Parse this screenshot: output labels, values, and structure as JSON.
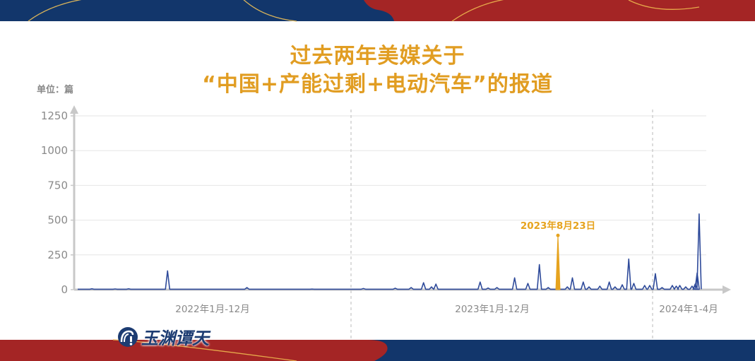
{
  "colors": {
    "title": "#e19d22",
    "line": "#2e4a9a",
    "highlight": "#e6a31e",
    "banner_blue": "#12366b",
    "banner_red": "#a42525",
    "axis": "#c8c8c8",
    "grid": "#e6e6e6"
  },
  "title_line1": "过去两年美媒关于",
  "title_line2": "“中国+产能过剩+电动汽车”的报道",
  "unit_label": "单位：篇",
  "logo": {
    "text": "玉渊谭天",
    "icon": "wave-exclamation-logo-icon"
  },
  "chart_data": {
    "type": "line",
    "ylim": [
      0,
      1250
    ],
    "yticks": [
      0,
      250,
      500,
      750,
      1000,
      1250
    ],
    "grid": true,
    "period_labels": [
      "2022年1月-12月",
      "2023年1月-12月",
      "2024年1-4月"
    ],
    "highlight": {
      "date": "2023-08-23",
      "value": 390,
      "label": "2023年8月23日"
    },
    "baseline_value": 3,
    "series": [
      {
        "points": [
          [
            "2022-01-20",
            6
          ],
          [
            "2022-02-20",
            5
          ],
          [
            "2022-03-10",
            6
          ],
          [
            "2022-05-01",
            135
          ],
          [
            "2022-08-15",
            15
          ],
          [
            "2022-11-10",
            4
          ],
          [
            "2023-01-15",
            8
          ],
          [
            "2023-02-20",
            10
          ],
          [
            "2023-03-10",
            15
          ],
          [
            "2023-03-24",
            50
          ],
          [
            "2023-04-02",
            20
          ],
          [
            "2023-04-07",
            40
          ],
          [
            "2023-05-27",
            55
          ],
          [
            "2023-06-05",
            12
          ],
          [
            "2023-06-15",
            15
          ],
          [
            "2023-07-05",
            85
          ],
          [
            "2023-07-20",
            45
          ],
          [
            "2023-08-02",
            180
          ],
          [
            "2023-08-12",
            15
          ],
          [
            "2023-08-23",
            390
          ],
          [
            "2023-09-05",
            20
          ],
          [
            "2023-09-12",
            85
          ],
          [
            "2023-09-27",
            55
          ],
          [
            "2023-10-05",
            20
          ],
          [
            "2023-10-20",
            25
          ],
          [
            "2023-11-02",
            55
          ],
          [
            "2023-11-10",
            20
          ],
          [
            "2023-11-20",
            35
          ],
          [
            "2023-11-29",
            220
          ],
          [
            "2023-12-06",
            45
          ],
          [
            "2023-12-21",
            30
          ],
          [
            "2023-12-28",
            30
          ],
          [
            "2024-01-08",
            115
          ],
          [
            "2024-01-25",
            15
          ],
          [
            "2024-02-20",
            30
          ],
          [
            "2024-03-01",
            25
          ],
          [
            "2024-03-10",
            30
          ],
          [
            "2024-03-25",
            20
          ],
          [
            "2024-04-10",
            25
          ],
          [
            "2024-04-18",
            40
          ],
          [
            "2024-04-23",
            120
          ],
          [
            "2024-04-28",
            545
          ]
        ]
      }
    ]
  }
}
